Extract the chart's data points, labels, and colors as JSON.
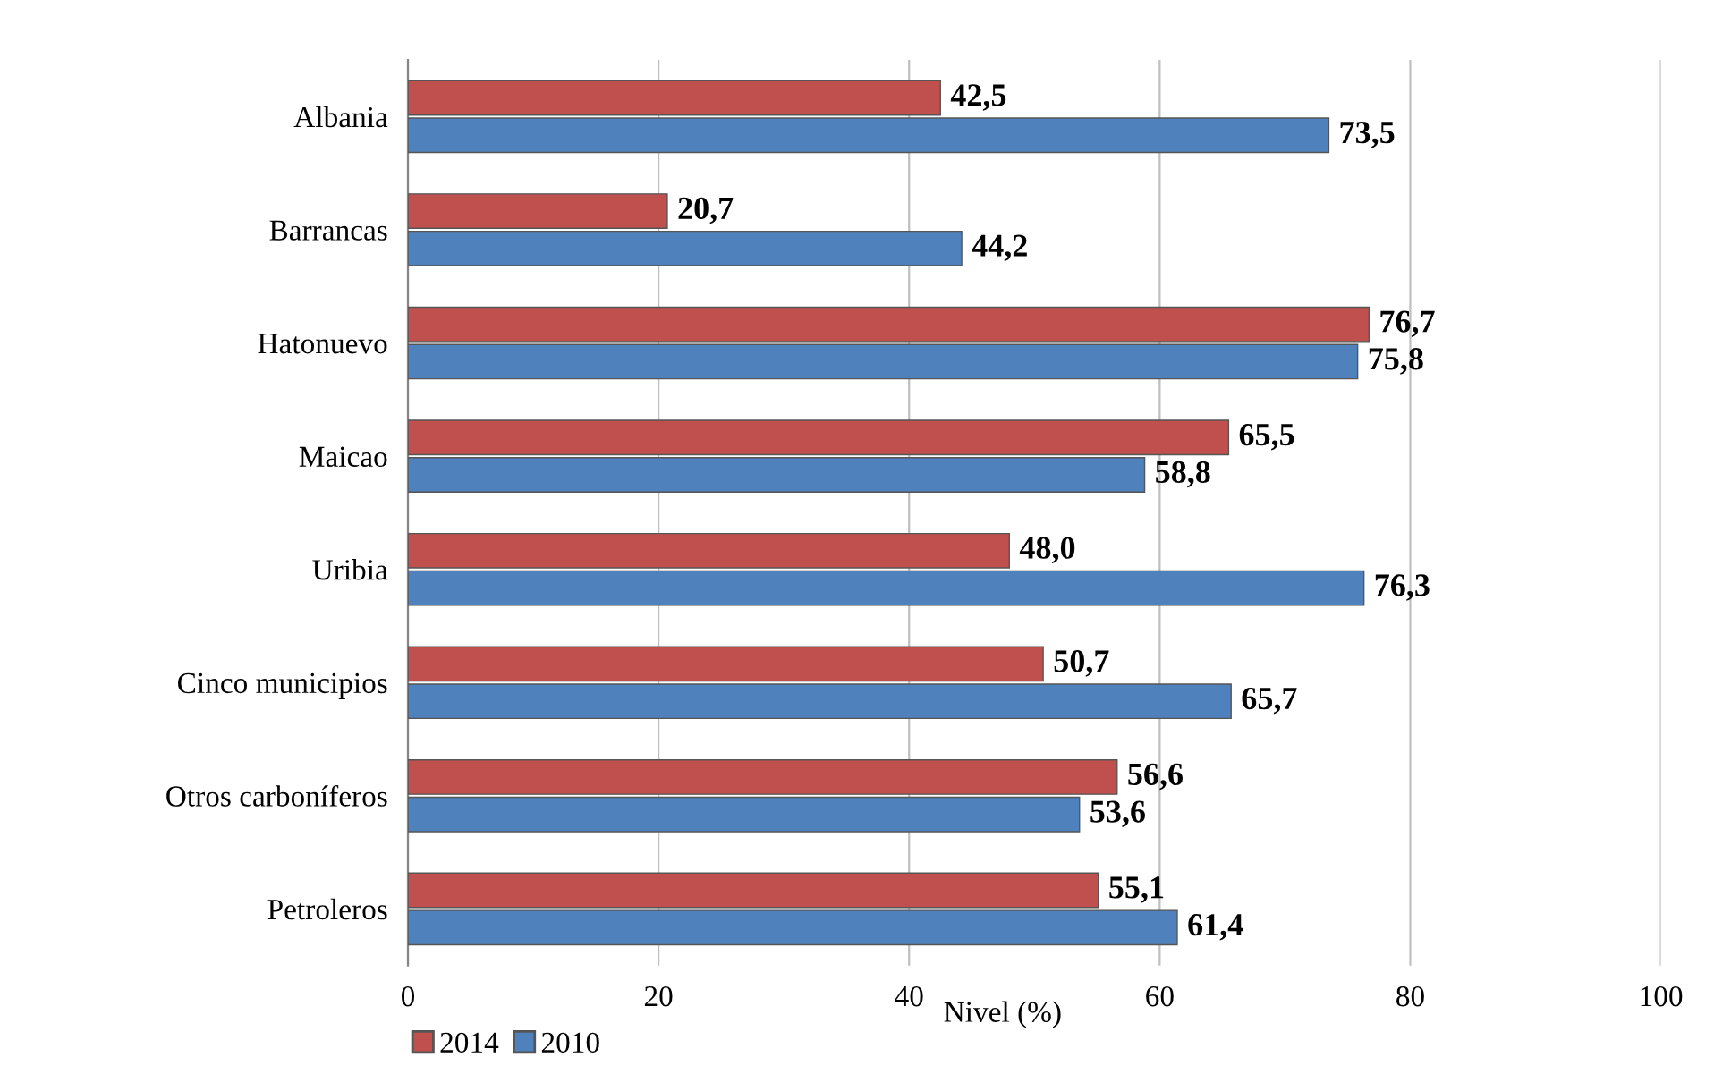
{
  "chart_data": {
    "type": "bar",
    "orientation": "horizontal",
    "xlabel": "Nivel (%)",
    "categories": [
      "Albania",
      "Barrancas",
      "Hatonuevo",
      "Maicao",
      "Uribia",
      "Cinco municipios",
      "Otros carboníferos",
      "Petroleros"
    ],
    "series": [
      {
        "name": "2014",
        "color": "#c0504d",
        "values": [
          42.5,
          20.7,
          76.7,
          65.5,
          48.0,
          50.7,
          56.6,
          55.1
        ],
        "value_labels": [
          "42,5",
          "20,7",
          "76,7",
          "65,5",
          "48,0",
          "50,7",
          "56,6",
          "55,1"
        ]
      },
      {
        "name": "2010",
        "color": "#4f81bd",
        "values": [
          73.5,
          44.2,
          75.8,
          58.8,
          76.3,
          65.7,
          53.6,
          61.4
        ],
        "value_labels": [
          "73,5",
          "44,2",
          "75,8",
          "58,8",
          "76,3",
          "65,7",
          "53,6",
          "61,4"
        ]
      }
    ],
    "xlim": [
      0,
      100
    ],
    "xticks": [
      0,
      20,
      40,
      60,
      80,
      100
    ],
    "grid": "x",
    "legend": "bottom left"
  }
}
